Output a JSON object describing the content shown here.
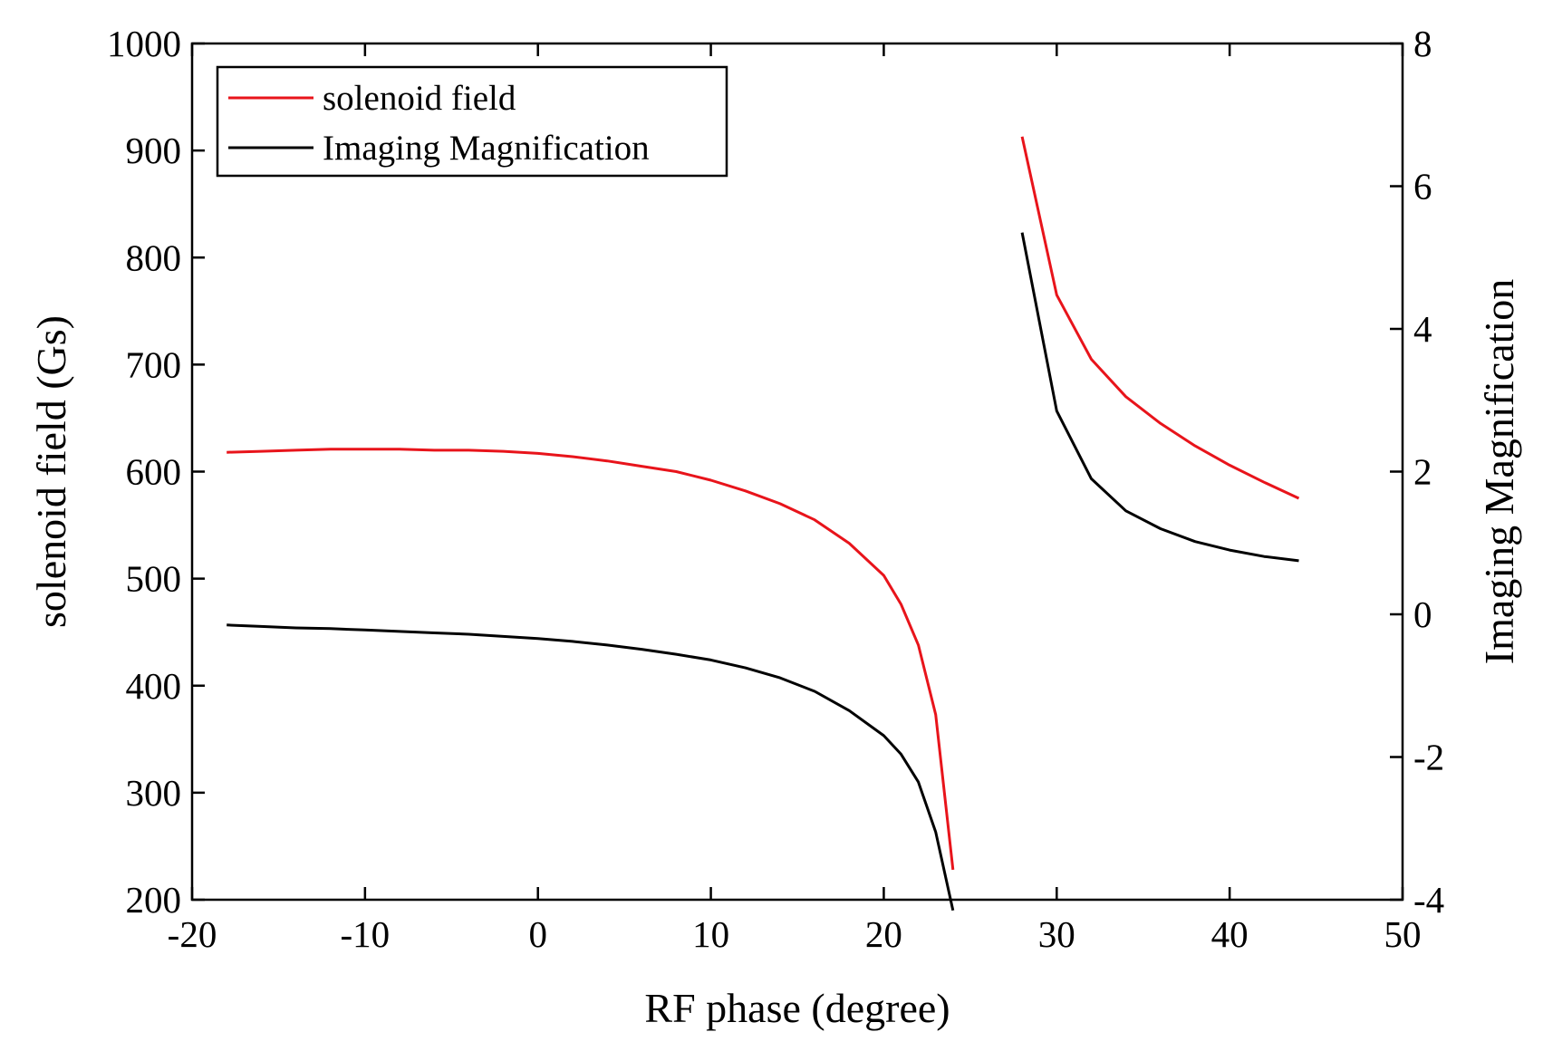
{
  "chart_data": {
    "type": "line",
    "xlabel": "RF phase (degree)",
    "ylabel": "solenoid field (Gs)",
    "y2label": "Imaging Magnification",
    "xlim": [
      -20,
      50
    ],
    "ylim": [
      200,
      1000
    ],
    "y2lim": [
      -4,
      8
    ],
    "xticks": [
      -20,
      -10,
      0,
      10,
      20,
      30,
      40,
      50
    ],
    "yticks": [
      200,
      300,
      400,
      500,
      600,
      700,
      800,
      900,
      1000
    ],
    "y2ticks": [
      -4,
      -2,
      0,
      2,
      4,
      6,
      8
    ],
    "grid": false,
    "legend_position": "top-left",
    "series": [
      {
        "name": "solenoid field",
        "axis": "left",
        "color": "#e8141b",
        "segments": [
          {
            "x": [
              -18,
              -16,
              -14,
              -12,
              -10,
              -8,
              -6,
              -4,
              -2,
              0,
              2,
              4,
              6,
              8,
              10,
              12,
              14,
              16,
              18,
              20,
              21,
              22,
              23,
              24
            ],
            "y": [
              618,
              619,
              620,
              621,
              621,
              621,
              620,
              620,
              619,
              617,
              614,
              610,
              605,
              600,
              592,
              582,
              570,
              555,
              533,
              503,
              476,
              438,
              373,
              228
            ]
          },
          {
            "x": [
              28,
              30,
              32,
              34,
              36,
              38,
              40,
              42,
              44
            ],
            "y": [
              913,
              765,
              705,
              670,
              645,
              624,
              606,
              590,
              575
            ]
          }
        ]
      },
      {
        "name": "Imaging Magnification",
        "axis": "right",
        "color": "#000000",
        "segments": [
          {
            "x": [
              -18,
              -16,
              -14,
              -12,
              -10,
              -8,
              -6,
              -4,
              -2,
              0,
              2,
              4,
              6,
              8,
              10,
              12,
              14,
              16,
              18,
              20,
              21,
              22,
              23,
              24
            ],
            "y": [
              -0.15,
              -0.17,
              -0.19,
              -0.2,
              -0.22,
              -0.24,
              -0.26,
              -0.28,
              -0.31,
              -0.34,
              -0.38,
              -0.43,
              -0.49,
              -0.56,
              -0.64,
              -0.75,
              -0.89,
              -1.08,
              -1.35,
              -1.7,
              -1.96,
              -2.35,
              -3.05,
              -4.15
            ]
          },
          {
            "x": [
              28,
              30,
              32,
              34,
              36,
              38,
              40,
              42,
              44
            ],
            "y": [
              5.35,
              2.85,
              1.9,
              1.45,
              1.2,
              1.02,
              0.9,
              0.81,
              0.75
            ]
          }
        ]
      }
    ]
  }
}
